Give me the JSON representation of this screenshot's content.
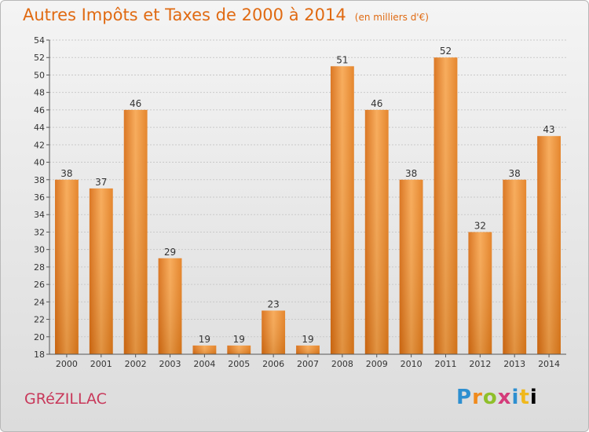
{
  "chart_data": {
    "type": "bar",
    "title": "Autres Impôts et Taxes de 2000 à 2014",
    "unit_note": "(en milliers d'€)",
    "categories": [
      "2000",
      "2001",
      "2002",
      "2003",
      "2004",
      "2005",
      "2006",
      "2007",
      "2008",
      "2009",
      "2010",
      "2011",
      "2012",
      "2013",
      "2014"
    ],
    "values": [
      38,
      37,
      46,
      29,
      19,
      19,
      23,
      19,
      51,
      46,
      38,
      52,
      32,
      38,
      43
    ],
    "ylim": [
      18,
      54
    ],
    "yticks": [
      18,
      20,
      22,
      24,
      26,
      28,
      30,
      32,
      34,
      36,
      38,
      40,
      42,
      44,
      46,
      48,
      50,
      52,
      54
    ],
    "grid": true,
    "bar_color": "#f08a2a",
    "label_color": "#333333"
  },
  "commune": "GRéZILLAC",
  "logo": "Proxiti",
  "colors": {
    "title": "#e06a12",
    "commune": "#c8385a"
  }
}
